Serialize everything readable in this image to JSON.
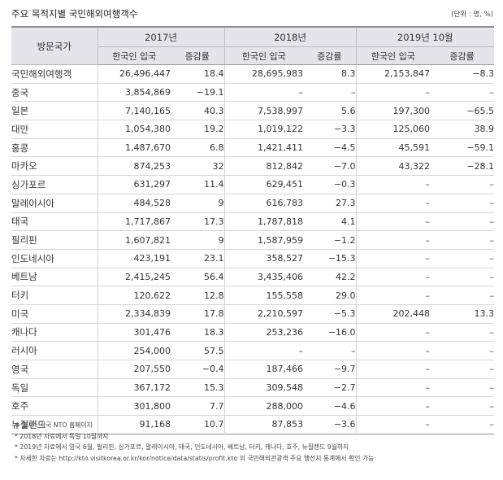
{
  "title": "주요 목적지별  국민해외여행객수",
  "unit": "(단위 : 명, %)",
  "header": {
    "country": "방문국가",
    "years": [
      "2017년",
      "2018년",
      "2019년 10월"
    ],
    "travelers": "한국인 입국",
    "change": "증감률"
  },
  "rows": [
    {
      "country": "국민해외여행객",
      "a": "26,496,447",
      "b": "18.4",
      "c": "28,695,983",
      "d": "8.3",
      "e": "2,153,847",
      "f": "−8.3"
    },
    {
      "country": "중국",
      "a": "3,854,869",
      "b": "−19.1",
      "c": "–",
      "d": "–",
      "e": "–",
      "f": "–"
    },
    {
      "country": "일본",
      "a": "7,140,165",
      "b": "40.3",
      "c": "7,538,997",
      "d": "5.6",
      "e": "197,300",
      "f": "−65.5"
    },
    {
      "country": "대만",
      "a": "1,054,380",
      "b": "19.2",
      "c": "1,019,122",
      "d": "−3.3",
      "e": "125,060",
      "f": "38.9"
    },
    {
      "country": "홍콩",
      "a": "1,487,670",
      "b": "6.8",
      "c": "1,421,411",
      "d": "−4.5",
      "e": "45,591",
      "f": "−59.1"
    },
    {
      "country": "마카오",
      "a": "874,253",
      "b": "32",
      "c": "812,842",
      "d": "−7.0",
      "e": "43,322",
      "f": "−28.1"
    },
    {
      "country": "싱가포르",
      "a": "631,297",
      "b": "11.4",
      "c": "629,451",
      "d": "−0.3",
      "e": "–",
      "f": "–"
    },
    {
      "country": "말레이시아",
      "a": "484,528",
      "b": "9",
      "c": "616,783",
      "d": "27.3",
      "e": "–",
      "f": "–"
    },
    {
      "country": "태국",
      "a": "1,717,867",
      "b": "17.3",
      "c": "1,787,818",
      "d": "4.1",
      "e": "–",
      "f": "–"
    },
    {
      "country": "필리핀",
      "a": "1,607,821",
      "b": "9",
      "c": "1,587,959",
      "d": "−1.2",
      "e": "–",
      "f": "–"
    },
    {
      "country": "인도네시아",
      "a": "423,191",
      "b": "23.1",
      "c": "358,527",
      "d": "−15.3",
      "e": "–",
      "f": "–"
    },
    {
      "country": "베트남",
      "a": "2,415,245",
      "b": "56.4",
      "c": "3,435,406",
      "d": "42.2",
      "e": "–",
      "f": "–"
    },
    {
      "country": "터키",
      "a": "120,622",
      "b": "12.8",
      "c": "155,558",
      "d": "29.0",
      "e": "–",
      "f": "–"
    },
    {
      "country": "미국",
      "a": "2,334,839",
      "b": "17.8",
      "c": "2,210,597",
      "d": "−5.3",
      "e": "202,448",
      "f": "13.3"
    },
    {
      "country": "캐나다",
      "a": "301,476",
      "b": "18.3",
      "c": "253,236",
      "d": "−16.0",
      "e": "–",
      "f": "–"
    },
    {
      "country": "러시아",
      "a": "254,000",
      "b": "57.5",
      "c": "–",
      "d": "–",
      "e": "–",
      "f": "–"
    },
    {
      "country": "영국",
      "a": "207,550",
      "b": "−0.4",
      "c": "187,466",
      "d": "−9.7",
      "e": "–",
      "f": "–"
    },
    {
      "country": "독일",
      "a": "367,172",
      "b": "15.3",
      "c": "309,548",
      "d": "−2.7",
      "e": "–",
      "f": "–"
    },
    {
      "country": "호주",
      "a": "301,800",
      "b": "7.7",
      "c": "288,000",
      "d": "−4.6",
      "e": "–",
      "f": "–"
    },
    {
      "country": "뉴질랜드",
      "a": "91,168",
      "b": "10.7",
      "c": "87,853",
      "d": "−3.6",
      "e": "–",
      "f": "–"
    }
  ],
  "notes": [
    "※ 출처 : 각국 NTO 홈페이지",
    "* 2018년 자료에서 독일 10월까지",
    "* 2019년 자료에서 영국 6월, 필리핀, 싱가포르, 말레이시아, 태국, 인도네시아, 베트남, 터키, 캐나다, 호주, 뉴질랜드 9월까지",
    "* 자세한 자료는 http://kto.visitkorea.or.kr/kor/notice/data/statis/profit.kto 의 국민해외관광객 주요 행선지 통계에서 확인 가능"
  ]
}
